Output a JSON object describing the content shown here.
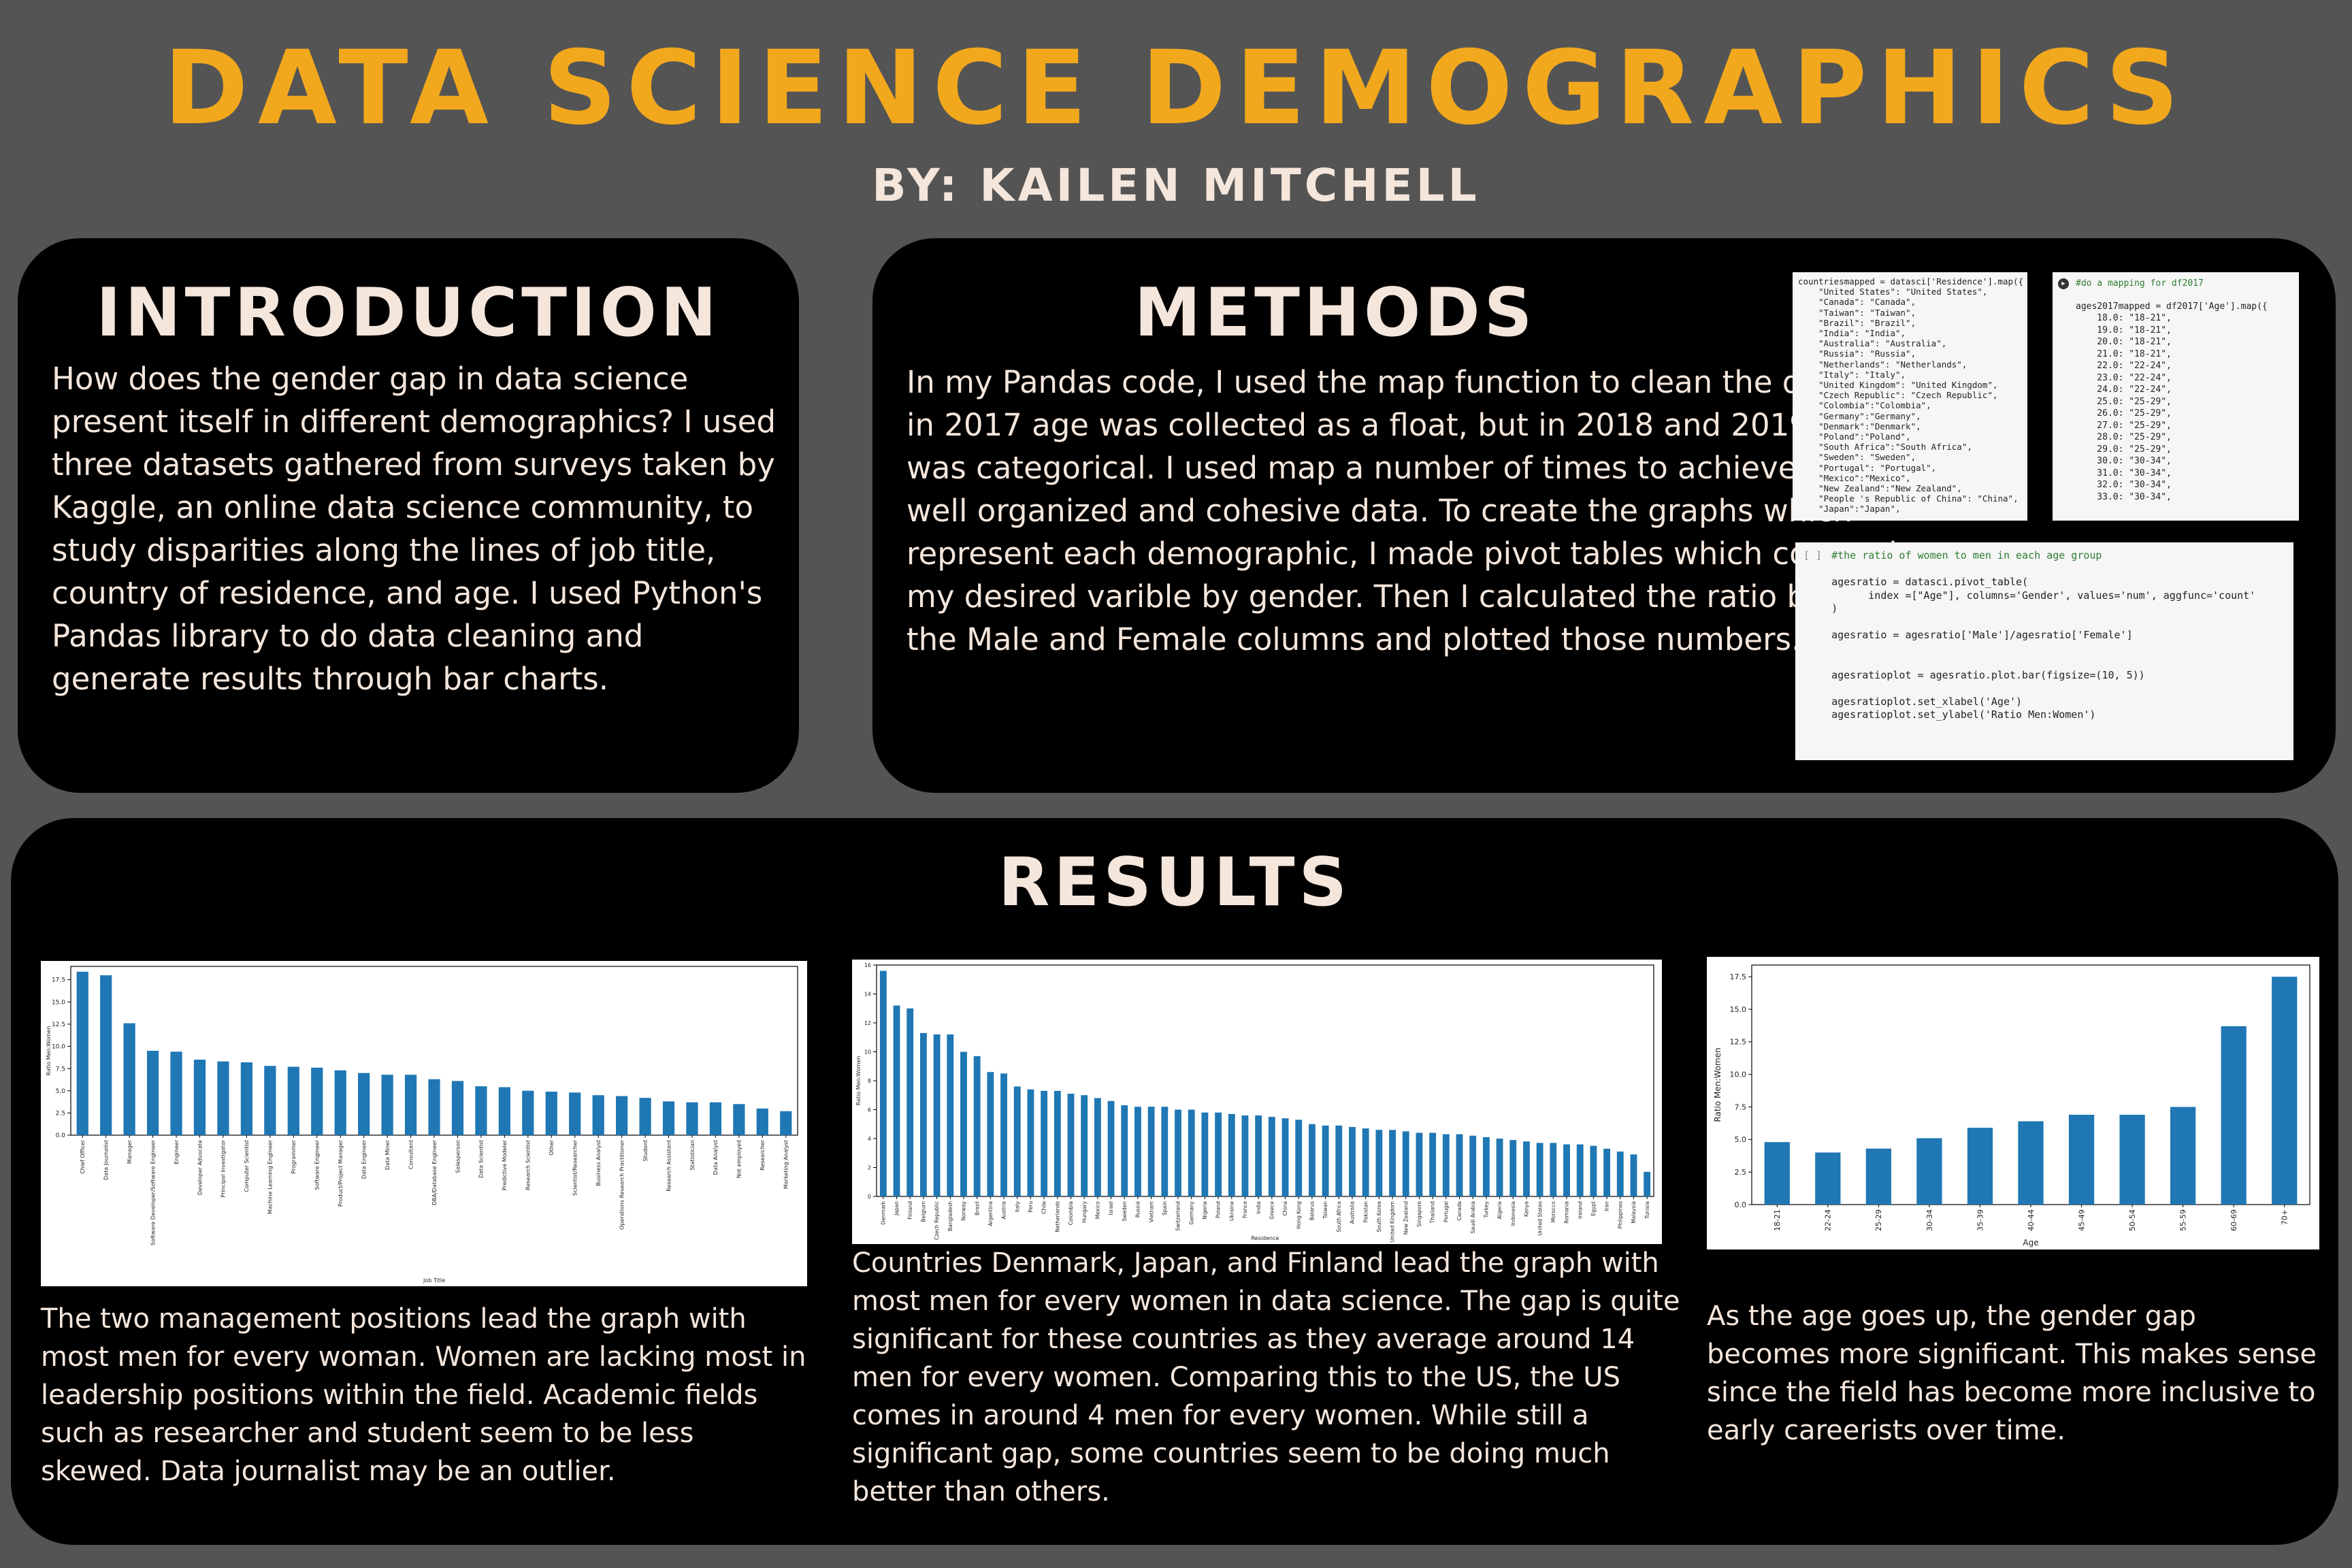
{
  "title": "DATA SCIENCE DEMOGRAPHICS",
  "byline": "BY: KAILEN MITCHELL",
  "introduction": {
    "heading": "INTRODUCTION",
    "text": "How does the gender gap in data science present itself in different demographics? I used three datasets gathered from surveys taken by Kaggle, an online data science community, to study disparities along the lines of job title, country of residence, and age. I used Python's Pandas library to do data cleaning and generate results through bar charts."
  },
  "methods": {
    "heading": "METHODS",
    "text": " In my Pandas code, I used the map function to clean the data since in 2017 age was collected as a float, but in 2018 and 2019 the data was categorical. I used map a number of times to achieve the goal of well organized and cohesive data. To create the graphs which represent each demographic, I made pivot tables which counted up my desired varible by gender. Then I calculated the ratio between the Male and Female columns and plotted those numbers.",
    "code_country": [
      "countriesmapped = datasci['Residence'].map({",
      "    \"United States\": \"United States\",",
      "    \"Canada\": \"Canada\",",
      "    \"Taiwan\": \"Taiwan\",",
      "    \"Brazil\": \"Brazil\",",
      "    \"India\": \"India\",",
      "    \"Australia\": \"Australia\",",
      "    \"Russia\": \"Russia\",",
      "    \"Netherlands\": \"Netherlands\",",
      "    \"Italy\": \"Italy\",",
      "    \"United Kingdom\": \"United Kingdom\",",
      "    \"Czech Republic\": \"Czech Republic\",",
      "    \"Colombia\":\"Colombia\",",
      "    \"Germany\":\"Germany\",",
      "    \"Denmark\":\"Denmark\",",
      "    \"Poland\":\"Poland\",",
      "    \"South Africa\":\"South Africa\",",
      "    \"Sweden\": \"Sweden\",",
      "    \"Portugal\": \"Portugal\",",
      "    \"Mexico\":\"Mexico\",",
      "    \"New Zealand\":\"New Zealand\",",
      "    \"People 's Republic of China\": \"China\",",
      "    \"Japan\":\"Japan\","
    ],
    "code_age_comment": "#do a mapping for df2017",
    "code_age": [
      "ages2017mapped = df2017['Age'].map({",
      "    18.0: \"18-21\",",
      "    19.0: \"18-21\",",
      "    20.0: \"18-21\",",
      "    21.0: \"18-21\",",
      "    22.0: \"22-24\",",
      "    23.0: \"22-24\",",
      "    24.0: \"22-24\",",
      "    25.0: \"25-29\",",
      "    26.0: \"25-29\",",
      "    27.0: \"25-29\",",
      "    28.0: \"25-29\",",
      "    29.0: \"25-29\",",
      "    30.0: \"30-34\",",
      "    31.0: \"30-34\",",
      "    32.0: \"30-34\",",
      "    33.0: \"30-34\","
    ],
    "code_ratio_prompt": "[ ]",
    "code_ratio": [
      "#the ratio of women to men in each age group",
      "",
      "agesratio = datasci.pivot_table(",
      "      index =[\"Age\"], columns='Gender', values='num', aggfunc='count'",
      ")",
      "",
      "agesratio = agesratio['Male']/agesratio['Female']",
      "",
      "",
      "agesratioplot = agesratio.plot.bar(figsize=(10, 5))",
      "",
      "agesratioplot.set_xlabel('Age')",
      "agesratioplot.set_ylabel('Ratio Men:Women')"
    ]
  },
  "results": {
    "heading": "RESULTS",
    "job_text": "The two management positions lead the graph with most men for every woman. Women are lacking most in leadership positions within the field. Academic fields such as researcher and student seem to be less skewed. Data journalist may be an outlier.",
    "country_text": "Countries Denmark, Japan, and Finland lead the graph with most men for every women in data science. The gap is quite significant for these countries as they average around 14 men for every women. Comparing this to the US, the US comes in around 4 men for every women. While still a significant gap, some countries seem to be doing much better than others.",
    "age_text": "As the age goes up, the gender gap becomes more significant. This makes sense since the field has become more inclusive to early careerists over time."
  },
  "colors": {
    "accent": "#F2A81D",
    "text": "#F5E6DC",
    "bar": "#1F77B4",
    "panel": "#000000",
    "background": "#545454"
  },
  "chart_data": [
    {
      "type": "bar",
      "xlabel": "Job Title",
      "ylabel": "Ratio Men:Women",
      "ylim": [
        0,
        19
      ],
      "yticks": [
        "0.0",
        "2.5",
        "5.0",
        "7.5",
        "10.0",
        "12.5",
        "15.0",
        "17.5"
      ],
      "categories": [
        "Chief Officer",
        "Data Journalist",
        "Manager",
        "Software Developer/Software Engineer",
        "Engineer",
        "Developer Advocate",
        "Principal Investigator",
        "Computer Scientist",
        "Machine Learning Engineer",
        "Programmer",
        "Software Engineer",
        "Product/Project Manager",
        "Data Engineer",
        "Data Miner",
        "Consultant",
        "DBA/Database Engineer",
        "Salesperson",
        "Data Scientist",
        "Predictive Modeler",
        "Research Scientist",
        "Other",
        "Scientist/Researcher",
        "Business Analyst",
        "Operations Research Practitioner",
        "Student",
        "Research Assistant",
        "Statistician",
        "Data Analyst",
        "Not employed",
        "Researcher",
        "Marketing Analyst"
      ],
      "values": [
        18.4,
        18.0,
        12.6,
        9.5,
        9.4,
        8.5,
        8.3,
        8.2,
        7.8,
        7.7,
        7.6,
        7.3,
        7.0,
        6.8,
        6.8,
        6.3,
        6.1,
        5.5,
        5.4,
        5.0,
        4.9,
        4.8,
        4.5,
        4.4,
        4.2,
        3.8,
        3.7,
        3.7,
        3.5,
        3.0,
        2.7
      ]
    },
    {
      "type": "bar",
      "xlabel": "Residence",
      "ylabel": "Ratio Men:Women",
      "ylim": [
        0,
        16
      ],
      "yticks": [
        "0",
        "2",
        "4",
        "6",
        "8",
        "10",
        "12",
        "14",
        "16"
      ],
      "categories": [
        "Denmark",
        "Japan",
        "Finland",
        "Belgium",
        "Czech Republic",
        "Bangladesh",
        "Norway",
        "Brazil",
        "Argentina",
        "Austria",
        "Italy",
        "Peru",
        "Chile",
        "Netherlands",
        "Colombia",
        "Hungary",
        "Mexico",
        "Israel",
        "Sweden",
        "Russia",
        "Vietnam",
        "Spain",
        "Switzerland",
        "Germany",
        "Nigeria",
        "Poland",
        "Ukraine",
        "France",
        "India",
        "Greece",
        "China",
        "Hong Kong",
        "Belarus",
        "Taiwan",
        "South Africa",
        "Australia",
        "Pakistan",
        "South Korea",
        "United Kingdom",
        "New Zealand",
        "Singapore",
        "Thailand",
        "Portugal",
        "Canada",
        "Saudi Arabia",
        "Turkey",
        "Algeria",
        "Indonesia",
        "Kenya",
        "United States",
        "Morocco",
        "Romania",
        "Ireland",
        "Egypt",
        "Iran",
        "Philippines",
        "Malaysia",
        "Tunisia"
      ],
      "values": [
        15.6,
        13.2,
        13.0,
        11.3,
        11.2,
        11.2,
        10.0,
        9.7,
        8.6,
        8.5,
        7.6,
        7.4,
        7.3,
        7.3,
        7.1,
        7.0,
        6.8,
        6.6,
        6.3,
        6.2,
        6.2,
        6.2,
        6.0,
        6.0,
        5.8,
        5.8,
        5.7,
        5.6,
        5.6,
        5.5,
        5.4,
        5.3,
        5.0,
        4.9,
        4.9,
        4.8,
        4.7,
        4.6,
        4.6,
        4.5,
        4.4,
        4.4,
        4.3,
        4.3,
        4.2,
        4.1,
        4.0,
        3.9,
        3.8,
        3.7,
        3.7,
        3.6,
        3.6,
        3.5,
        3.3,
        3.1,
        2.9,
        1.7
      ]
    },
    {
      "type": "bar",
      "xlabel": "Age",
      "ylabel": "Ratio Men:Women",
      "ylim": [
        0,
        18.4
      ],
      "yticks": [
        "0.0",
        "2.5",
        "5.0",
        "7.5",
        "10.0",
        "12.5",
        "15.0",
        "17.5"
      ],
      "categories": [
        "18-21",
        "22-24",
        "25-29",
        "30-34",
        "35-39",
        "40-44",
        "45-49",
        "50-54",
        "55-59",
        "60-69",
        "70+"
      ],
      "values": [
        4.8,
        4.0,
        4.3,
        5.1,
        5.9,
        6.4,
        6.9,
        6.9,
        7.5,
        13.7,
        17.5
      ]
    }
  ]
}
